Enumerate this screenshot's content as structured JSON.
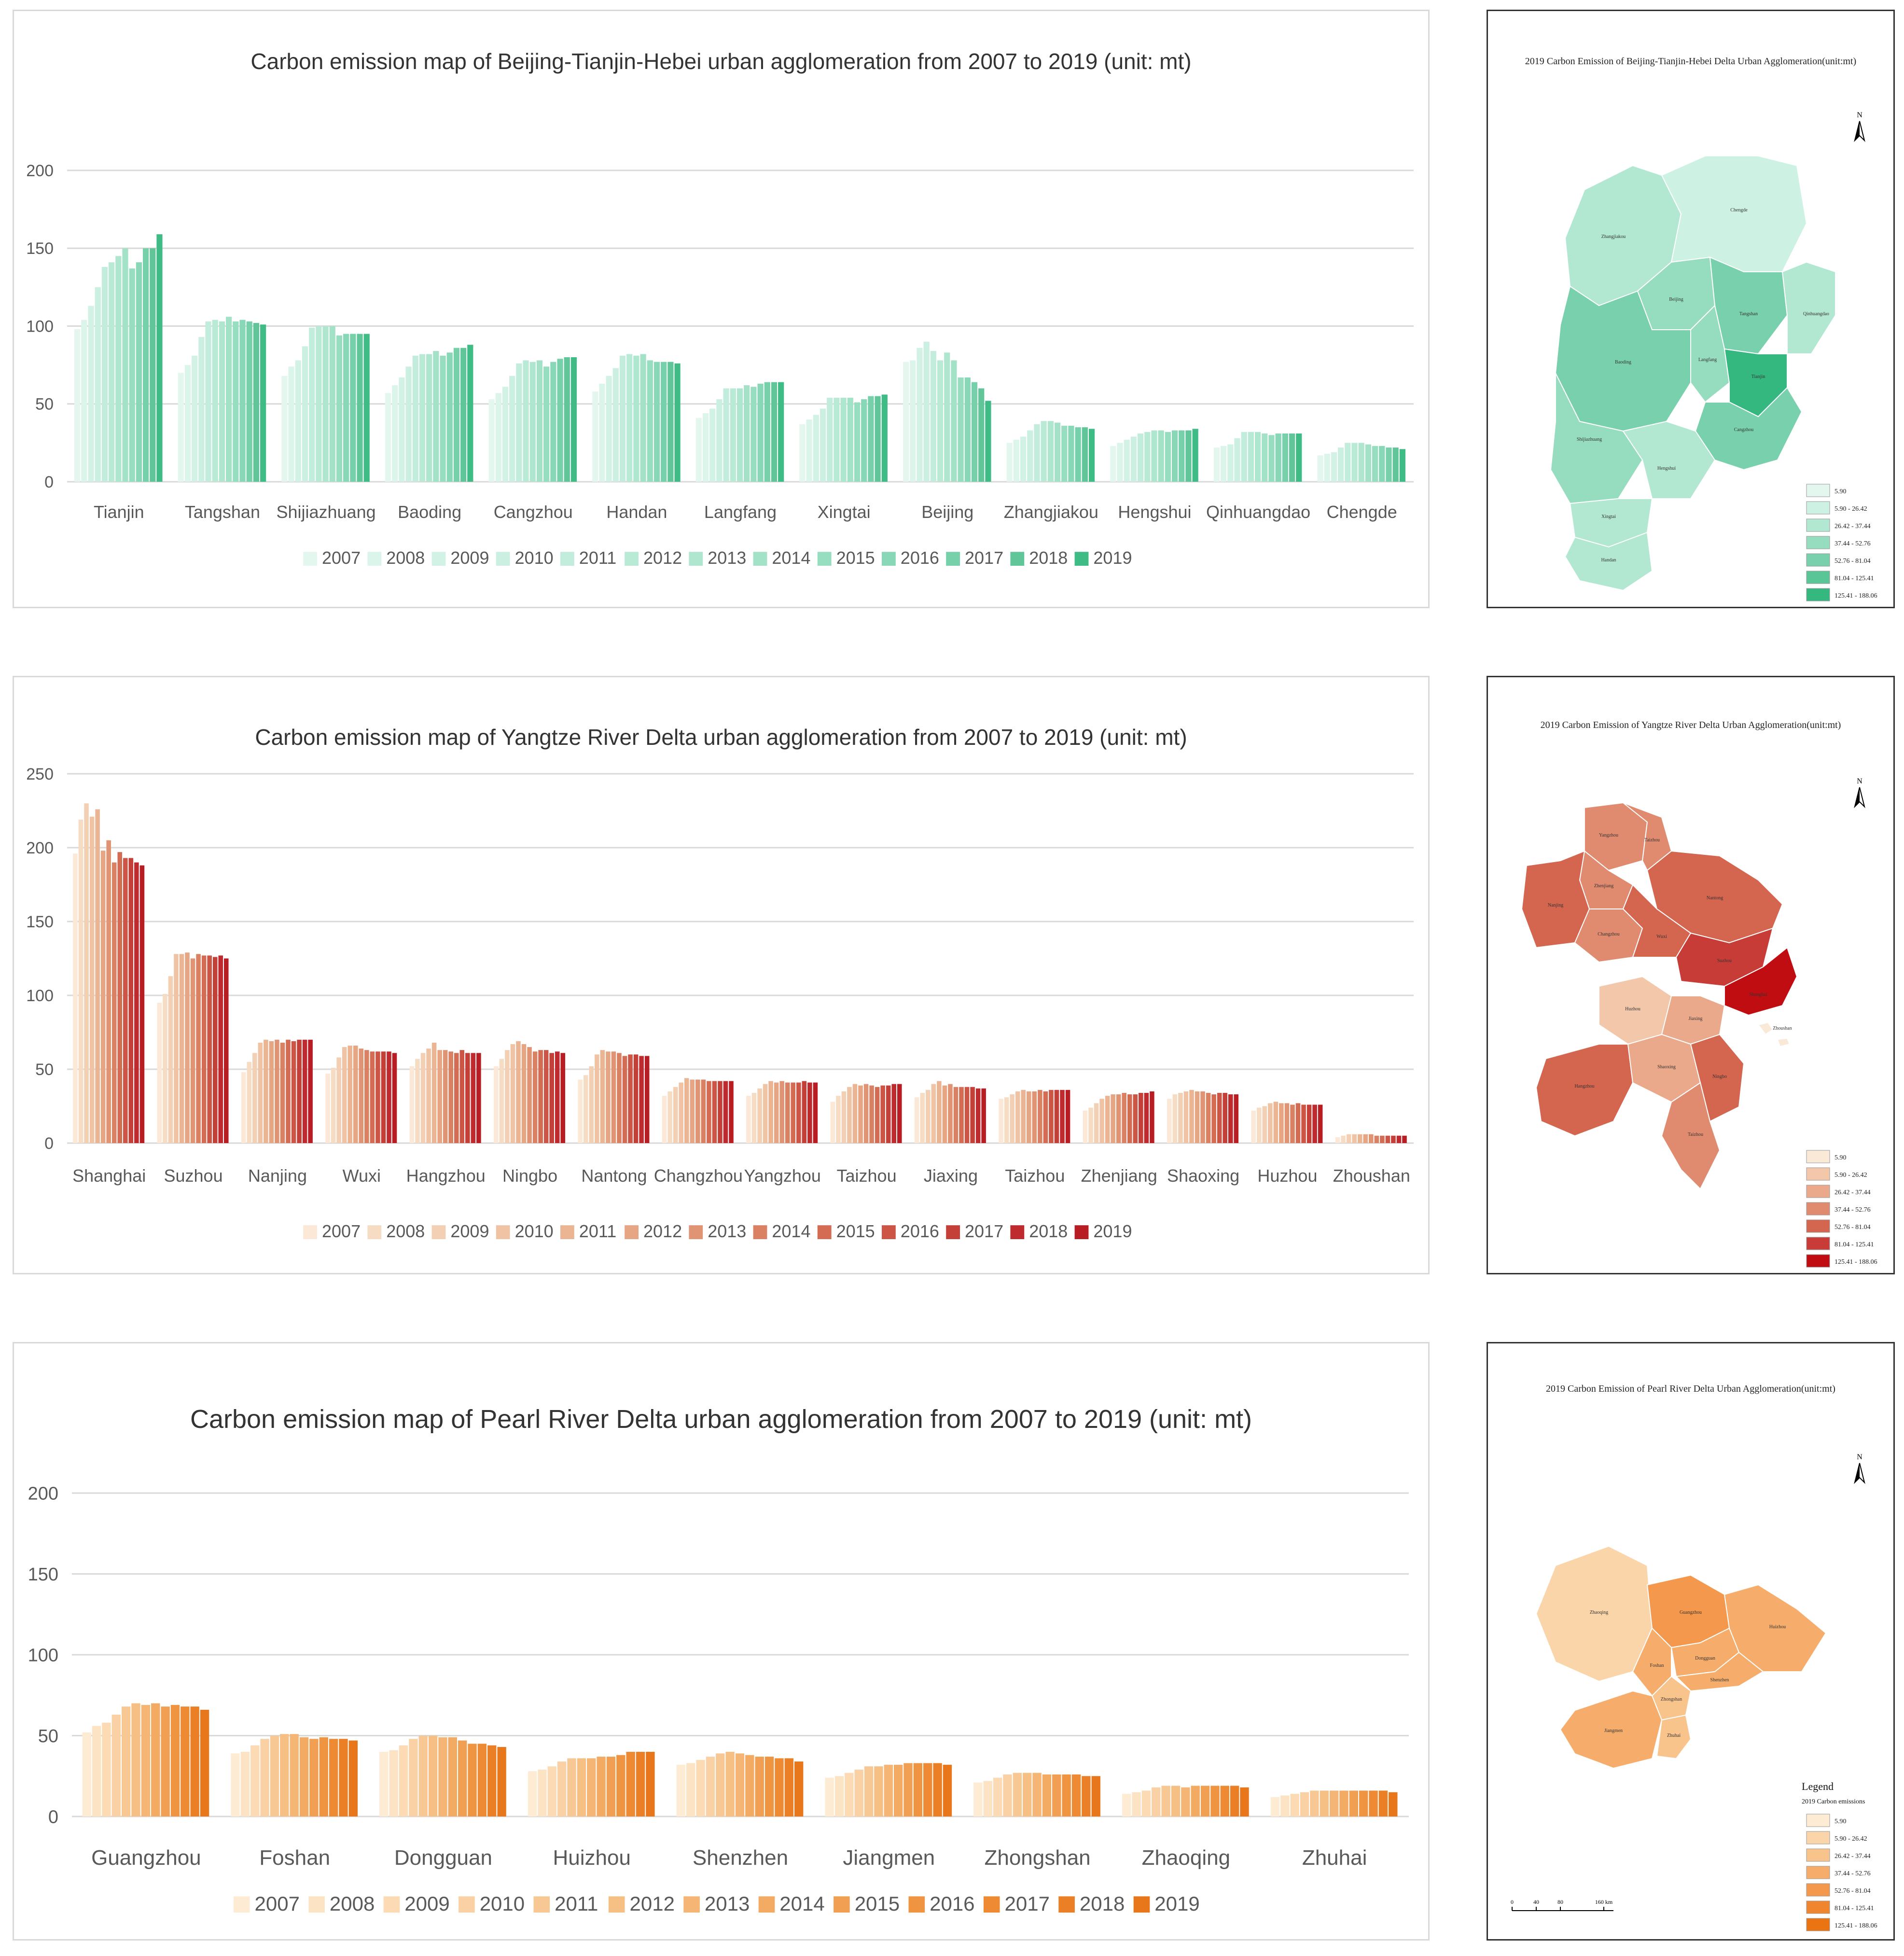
{
  "years": [
    "2007",
    "2008",
    "2009",
    "2010",
    "2011",
    "2012",
    "2013",
    "2014",
    "2015",
    "2016",
    "2017",
    "2018",
    "2019"
  ],
  "chart_data": [
    {
      "type": "bar",
      "title": "Carbon emission map of Beijing-Tianjin-Hebei urban agglomeration from 2007 to 2019 (unit: mt)",
      "xlabel": "",
      "ylabel": "",
      "ylim": [
        0,
        200
      ],
      "yticks": [
        "0",
        "50",
        "100",
        "150",
        "200"
      ],
      "colors": [
        "#e4f7ef",
        "#dcf5eb",
        "#d3f2e6",
        "#cbf0e1",
        "#c2eddc",
        "#b9ead6",
        "#afe6d0",
        "#a4e2c8",
        "#97ddc0",
        "#88d7b6",
        "#76d0aa",
        "#60c69a",
        "#3fbb85"
      ],
      "categories": [
        "Tianjin",
        "Tangshan",
        "Shijiazhuang",
        "Baoding",
        "Cangzhou",
        "Handan",
        "Langfang",
        "Xingtai",
        "Beijing",
        "Zhangjiakou",
        "Hengshui",
        "Qinhuangdao",
        "Chengde"
      ],
      "series": [
        {
          "name": "2007",
          "values": [
            98,
            70,
            68,
            57,
            53,
            58,
            41,
            37,
            77,
            25,
            23,
            22,
            17
          ]
        },
        {
          "name": "2008",
          "values": [
            104,
            75,
            74,
            62,
            57,
            63,
            44,
            40,
            78,
            27,
            25,
            23,
            18
          ]
        },
        {
          "name": "2009",
          "values": [
            113,
            81,
            78,
            67,
            61,
            68,
            47,
            43,
            86,
            29,
            27,
            24,
            19
          ]
        },
        {
          "name": "2010",
          "values": [
            125,
            93,
            87,
            74,
            68,
            73,
            53,
            47,
            90,
            33,
            29,
            28,
            22
          ]
        },
        {
          "name": "2011",
          "values": [
            138,
            103,
            99,
            81,
            76,
            81,
            60,
            54,
            84,
            37,
            31,
            32,
            25
          ]
        },
        {
          "name": "2012",
          "values": [
            141,
            104,
            100,
            82,
            78,
            82,
            60,
            54,
            78,
            39,
            32,
            32,
            25
          ]
        },
        {
          "name": "2013",
          "values": [
            145,
            103,
            100,
            82,
            77,
            81,
            60,
            54,
            83,
            39,
            33,
            32,
            25
          ]
        },
        {
          "name": "2014",
          "values": [
            150,
            106,
            100,
            84,
            78,
            82,
            62,
            54,
            78,
            38,
            33,
            31,
            24
          ]
        },
        {
          "name": "2015",
          "values": [
            137,
            103,
            94,
            81,
            74,
            78,
            61,
            51,
            67,
            36,
            32,
            30,
            23
          ]
        },
        {
          "name": "2016",
          "values": [
            141,
            104,
            95,
            83,
            77,
            77,
            63,
            53,
            67,
            36,
            33,
            31,
            23
          ]
        },
        {
          "name": "2017",
          "values": [
            150,
            103,
            95,
            86,
            79,
            77,
            64,
            55,
            64,
            35,
            33,
            31,
            22
          ]
        },
        {
          "name": "2018",
          "values": [
            150,
            102,
            95,
            86,
            80,
            77,
            64,
            55,
            60,
            35,
            33,
            31,
            22
          ]
        },
        {
          "name": "2019",
          "values": [
            159,
            101,
            95,
            88,
            80,
            76,
            64,
            56,
            52,
            34,
            34,
            31,
            21
          ]
        }
      ]
    },
    {
      "type": "bar",
      "title": "Carbon emission map of Yangtze River Delta urban agglomeration from 2007 to 2019 (unit: mt)",
      "xlabel": "",
      "ylabel": "",
      "ylim": [
        0,
        250
      ],
      "yticks": [
        "0",
        "50",
        "100",
        "150",
        "200",
        "250"
      ],
      "colors": [
        "#fbe8d6",
        "#f7dcc4",
        "#f3d0b4",
        "#efc3a3",
        "#ebb593",
        "#e6a583",
        "#e19473",
        "#db8163",
        "#d46c54",
        "#cc5546",
        "#c53f39",
        "#bf2a2e",
        "#b81d24"
      ],
      "categories": [
        "Shanghai",
        "Suzhou",
        "Nanjing",
        "Wuxi",
        "Hangzhou",
        "Ningbo",
        "Nantong",
        "Changzhou",
        "Yangzhou",
        "Taizhou",
        "Jiaxing",
        "Taizhou",
        "Zhenjiang",
        "Shaoxing",
        "Huzhou",
        "Zhoushan"
      ],
      "series": [
        {
          "name": "2007",
          "values": [
            196,
            95,
            48,
            47,
            52,
            52,
            43,
            32,
            32,
            28,
            31,
            30,
            22,
            30,
            22,
            4
          ]
        },
        {
          "name": "2008",
          "values": [
            219,
            101,
            55,
            51,
            57,
            57,
            46,
            35,
            34,
            32,
            34,
            31,
            24,
            33,
            24,
            5
          ]
        },
        {
          "name": "2009",
          "values": [
            230,
            113,
            61,
            58,
            61,
            63,
            52,
            38,
            37,
            35,
            36,
            33,
            27,
            34,
            25,
            6
          ]
        },
        {
          "name": "2010",
          "values": [
            221,
            128,
            68,
            65,
            64,
            67,
            60,
            41,
            40,
            38,
            40,
            35,
            30,
            35,
            27,
            6
          ]
        },
        {
          "name": "2011",
          "values": [
            226,
            128,
            70,
            66,
            68,
            69,
            63,
            44,
            42,
            40,
            42,
            36,
            32,
            36,
            28,
            6
          ]
        },
        {
          "name": "2012",
          "values": [
            198,
            129,
            69,
            66,
            63,
            67,
            62,
            43,
            41,
            39,
            39,
            35,
            33,
            35,
            27,
            6
          ]
        },
        {
          "name": "2013",
          "values": [
            205,
            125,
            70,
            64,
            63,
            65,
            62,
            43,
            42,
            40,
            40,
            35,
            33,
            35,
            27,
            6
          ]
        },
        {
          "name": "2014",
          "values": [
            190,
            128,
            68,
            63,
            62,
            62,
            61,
            43,
            41,
            39,
            38,
            36,
            34,
            34,
            26,
            5
          ]
        },
        {
          "name": "2015",
          "values": [
            197,
            127,
            70,
            62,
            61,
            63,
            59,
            42,
            41,
            38,
            38,
            35,
            33,
            33,
            27,
            5
          ]
        },
        {
          "name": "2016",
          "values": [
            193,
            127,
            69,
            62,
            63,
            63,
            60,
            42,
            41,
            39,
            38,
            36,
            33,
            34,
            26,
            5
          ]
        },
        {
          "name": "2017",
          "values": [
            193,
            126,
            70,
            62,
            61,
            61,
            60,
            42,
            42,
            39,
            38,
            36,
            34,
            34,
            26,
            5
          ]
        },
        {
          "name": "2018",
          "values": [
            190,
            127,
            70,
            62,
            61,
            62,
            59,
            42,
            41,
            40,
            37,
            36,
            34,
            33,
            26,
            5
          ]
        },
        {
          "name": "2019",
          "values": [
            188,
            125,
            70,
            61,
            61,
            61,
            59,
            42,
            41,
            40,
            37,
            36,
            35,
            33,
            26,
            5
          ]
        }
      ]
    },
    {
      "type": "bar",
      "title": "Carbon emission map of Pearl River Delta urban agglomeration from 2007 to 2019 (unit: mt)",
      "xlabel": "",
      "ylabel": "",
      "ylim": [
        0,
        200
      ],
      "yticks": [
        "0",
        "50",
        "100",
        "150",
        "200"
      ],
      "colors": [
        "#fdebd4",
        "#fce3c4",
        "#fbdab4",
        "#f9d1a4",
        "#f8c894",
        "#f6bf84",
        "#f5b574",
        "#f3aa63",
        "#f19f52",
        "#ef9542",
        "#ed8a33",
        "#eb7f25",
        "#e8761a"
      ],
      "categories": [
        "Guangzhou",
        "Foshan",
        "Dongguan",
        "Huizhou",
        "Shenzhen",
        "Jiangmen",
        "Zhongshan",
        "Zhaoqing",
        "Zhuhai"
      ],
      "series": [
        {
          "name": "2007",
          "values": [
            52,
            39,
            40,
            28,
            32,
            24,
            21,
            14,
            12
          ]
        },
        {
          "name": "2008",
          "values": [
            56,
            40,
            41,
            29,
            33,
            25,
            22,
            15,
            13
          ]
        },
        {
          "name": "2009",
          "values": [
            58,
            44,
            44,
            31,
            35,
            27,
            24,
            16,
            14
          ]
        },
        {
          "name": "2010",
          "values": [
            63,
            48,
            48,
            34,
            37,
            29,
            26,
            18,
            15
          ]
        },
        {
          "name": "2011",
          "values": [
            68,
            50,
            50,
            36,
            39,
            31,
            27,
            19,
            16
          ]
        },
        {
          "name": "2012",
          "values": [
            70,
            51,
            50,
            36,
            40,
            31,
            27,
            19,
            16
          ]
        },
        {
          "name": "2013",
          "values": [
            69,
            51,
            49,
            36,
            39,
            32,
            27,
            18,
            16
          ]
        },
        {
          "name": "2014",
          "values": [
            70,
            49,
            49,
            37,
            38,
            32,
            26,
            19,
            16
          ]
        },
        {
          "name": "2015",
          "values": [
            68,
            48,
            47,
            37,
            37,
            33,
            26,
            19,
            16
          ]
        },
        {
          "name": "2016",
          "values": [
            69,
            49,
            45,
            38,
            37,
            33,
            26,
            19,
            16
          ]
        },
        {
          "name": "2017",
          "values": [
            68,
            48,
            45,
            40,
            36,
            33,
            26,
            19,
            16
          ]
        },
        {
          "name": "2018",
          "values": [
            68,
            48,
            44,
            40,
            36,
            33,
            25,
            19,
            16
          ]
        },
        {
          "name": "2019",
          "values": [
            66,
            47,
            43,
            40,
            34,
            32,
            25,
            18,
            15
          ]
        }
      ]
    }
  ],
  "maps": [
    {
      "title": "2019 Carbon Emission of  Beijing-Tianjin-Hebei Delta Urban Agglomeration(unit:mt)",
      "north": "N",
      "legend_heading": "",
      "legend_subheading": "",
      "legend_items": [
        "5.90",
        "5.90 - 26.42",
        "26.42 - 37.44",
        "37.44 - 52.76",
        "52.76 - 81.04",
        "81.04 - 125.41",
        "125.41 - 188.06"
      ],
      "legend_colors": [
        "#e4f7ef",
        "#cdf1e2",
        "#b2e8d2",
        "#96ddc0",
        "#78d1ac",
        "#5ac596",
        "#34b87f"
      ],
      "region_labels": [
        "Zhangjiakou",
        "Chengde",
        "Beijing",
        "Tangshan",
        "Qinhuangdao",
        "Langfang",
        "Tianjin",
        "Baoding",
        "Cangzhou",
        "Shijiazhuang",
        "Hengshui",
        "Xingtai",
        "Handan"
      ],
      "scale": []
    },
    {
      "title": "2019 Carbon Emission of Yangtze River Delta Urban Agglomeration(unit:mt)",
      "north": "N",
      "legend_heading": "",
      "legend_subheading": "",
      "legend_items": [
        "5.90",
        "5.90 - 26.42",
        "26.42 - 37.44",
        "37.44 - 52.76",
        "52.76 - 81.04",
        "81.04 - 125.41",
        "125.41 - 188.06"
      ],
      "legend_colors": [
        "#fbe9d8",
        "#f2c7aa",
        "#eaa98b",
        "#e08b6f",
        "#d4654f",
        "#c83c37",
        "#c00d12"
      ],
      "region_labels": [
        "Yangzhou",
        "Taizhou",
        "Zhenjiang",
        "Nanjing",
        "Changzhou",
        "Nantong",
        "Wuxi",
        "Suzhou",
        "Shanghai",
        "Huzhou",
        "Jiaxing",
        "Hangzhou",
        "Shaoxing",
        "Ningbo",
        "Taizhou",
        "Zhoushan"
      ],
      "scale": []
    },
    {
      "title": "2019 Carbon Emission of Pearl River Delta Urban Agglomeration(unit:mt)",
      "north": "N",
      "legend_heading": "Legend",
      "legend_subheading": "2019 Carbon emissions",
      "legend_items": [
        "5.90",
        "5.90 - 26.42",
        "26.42 - 37.44",
        "37.44 - 52.76",
        "52.76 - 81.04",
        "81.04 - 125.41",
        "125.41 - 188.06"
      ],
      "legend_colors": [
        "#fdebd3",
        "#fbd5aa",
        "#f9c38c",
        "#f6ad6c",
        "#f3984c",
        "#ef852f",
        "#eb7412"
      ],
      "region_labels": [
        "Zhaoqing",
        "Guangzhou",
        "Huizhou",
        "Foshan",
        "Dongguan",
        "Shenzhen",
        "Zhongshan",
        "Jiangmen",
        "Zhuhai"
      ],
      "scale": [
        "0",
        "40",
        "80",
        "160 km"
      ]
    }
  ]
}
